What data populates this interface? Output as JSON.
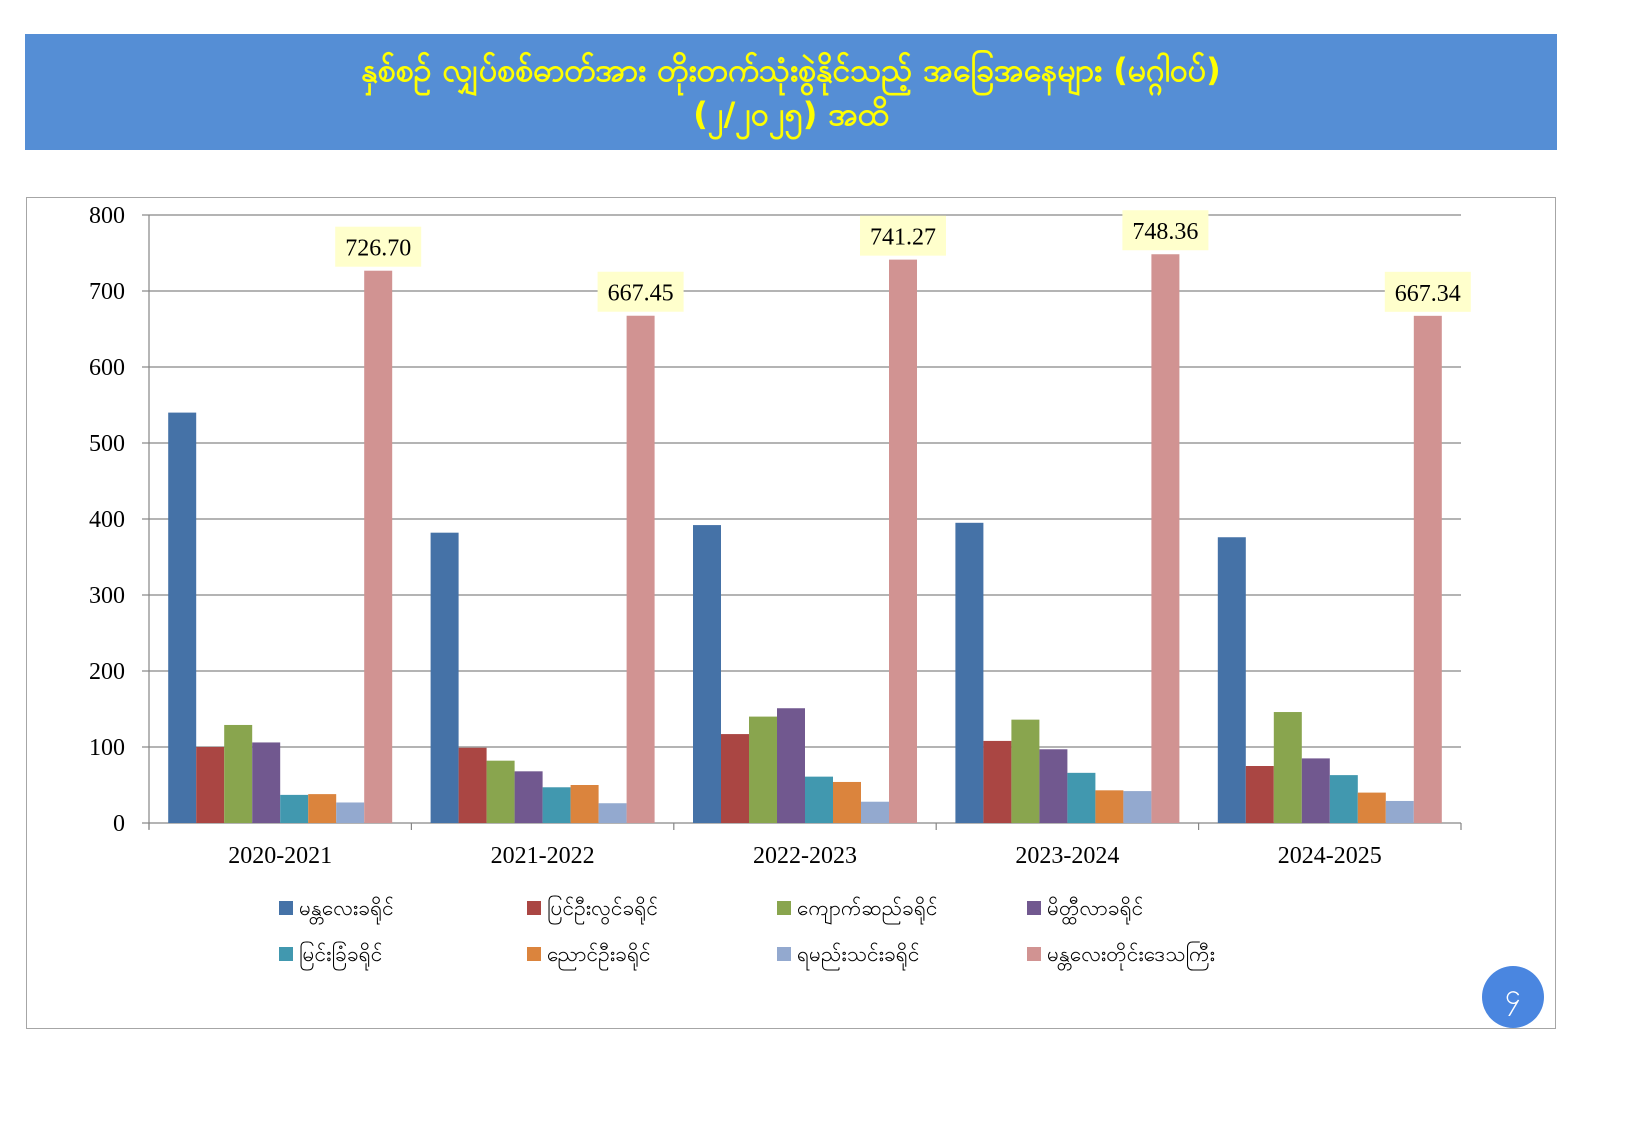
{
  "title": {
    "line1": "နှစ်စဉ် လျှပ်စစ်ဓာတ်အား တိုးတက်သုံးစွဲနိုင်သည့် အခြေအနေများ (မဂ္ဂါဝပ်)",
    "line2": "(၂/၂၀၂၅) အထိ"
  },
  "page_number": "၄",
  "colors": {
    "title_bg": "#558ed5",
    "title_text": "#ffff00",
    "label_bg": "#ffffcc"
  },
  "chart_data": {
    "type": "bar",
    "categories": [
      "2020-2021",
      "2021-2022",
      "2022-2023",
      "2023-2024",
      "2024-2025"
    ],
    "ylim": [
      0,
      800
    ],
    "yticks": [
      0,
      100,
      200,
      300,
      400,
      500,
      600,
      700,
      800
    ],
    "grid": true,
    "legend_position": "bottom",
    "series": [
      {
        "name": "မန္တလေးခရိုင်",
        "color": "#4572a7",
        "values": [
          540,
          382,
          392,
          395,
          376
        ]
      },
      {
        "name": "ပြင်ဦးလွင်ခရိုင်",
        "color": "#aa4643",
        "values": [
          100,
          99,
          117,
          108,
          75
        ]
      },
      {
        "name": "ကျောက်ဆည်ခရိုင်",
        "color": "#89a54e",
        "values": [
          129,
          82,
          140,
          136,
          146
        ]
      },
      {
        "name": "မိတ္ထီလာခရိုင်",
        "color": "#71588f",
        "values": [
          106,
          68,
          151,
          97,
          85
        ]
      },
      {
        "name": "မြင်းခြံခရိုင်",
        "color": "#4198af",
        "values": [
          37,
          47,
          61,
          66,
          63
        ]
      },
      {
        "name": "ညောင်ဦးခရိုင်",
        "color": "#db843d",
        "values": [
          38,
          50,
          54,
          43,
          40
        ]
      },
      {
        "name": "ရမည်းသင်းခရိုင်",
        "color": "#93a9cf",
        "values": [
          27,
          26,
          28,
          42,
          29
        ]
      },
      {
        "name": "မန္တလေးတိုင်းဒေသကြီး",
        "color": "#d19392",
        "values": [
          726.7,
          667.45,
          741.27,
          748.36,
          667.34
        ]
      }
    ],
    "data_labels": [
      {
        "series": 7,
        "category": 0,
        "text": "726.70"
      },
      {
        "series": 7,
        "category": 1,
        "text": "667.45"
      },
      {
        "series": 7,
        "category": 2,
        "text": "741.27"
      },
      {
        "series": 7,
        "category": 3,
        "text": "748.36"
      },
      {
        "series": 7,
        "category": 4,
        "text": "667.34"
      }
    ]
  }
}
